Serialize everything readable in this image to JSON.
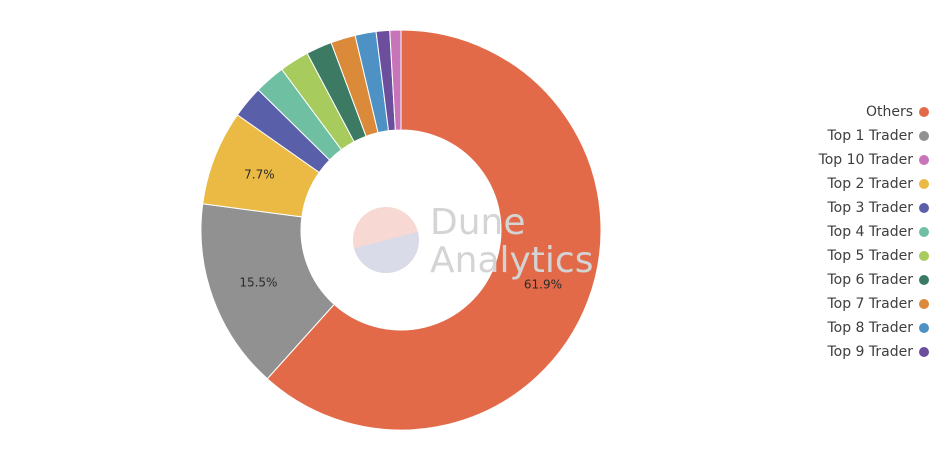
{
  "chart_data": {
    "type": "pie",
    "donut": true,
    "title": "",
    "watermark": [
      "Dune",
      "Analytics"
    ],
    "legend_position": "right",
    "slices": [
      {
        "label": "Others",
        "value": 61.9,
        "color": "#e36a48",
        "show_label": true,
        "data_label": "61.9%"
      },
      {
        "label": "Top 1 Trader",
        "value": 15.5,
        "color": "#919191",
        "show_label": true,
        "data_label": "15.5%"
      },
      {
        "label": "Top 2 Trader",
        "value": 7.7,
        "color": "#ebba45",
        "show_label": true,
        "data_label": "7.7%"
      },
      {
        "label": "Top 3 Trader",
        "value": 2.6,
        "color": "#5a5fa9",
        "show_label": false,
        "data_label": ""
      },
      {
        "label": "Top 4 Trader",
        "value": 2.5,
        "color": "#6fc0a3",
        "show_label": false,
        "data_label": ""
      },
      {
        "label": "Top 5 Trader",
        "value": 2.4,
        "color": "#a7cc5d",
        "show_label": false,
        "data_label": ""
      },
      {
        "label": "Top 6 Trader",
        "value": 2.1,
        "color": "#3c7a64",
        "show_label": false,
        "data_label": ""
      },
      {
        "label": "Top 7 Trader",
        "value": 2.0,
        "color": "#db8a3a",
        "show_label": false,
        "data_label": ""
      },
      {
        "label": "Top 8 Trader",
        "value": 1.7,
        "color": "#4d91c5",
        "show_label": false,
        "data_label": ""
      },
      {
        "label": "Top 9 Trader",
        "value": 1.1,
        "color": "#6b4f9c",
        "show_label": false,
        "data_label": ""
      },
      {
        "label": "Top 10 Trader",
        "value": 0.9,
        "color": "#c774b8",
        "show_label": false,
        "data_label": ""
      }
    ],
    "legend_order": [
      "Others",
      "Top 1 Trader",
      "Top 10 Trader",
      "Top 2 Trader",
      "Top 3 Trader",
      "Top 4 Trader",
      "Top 5 Trader",
      "Top 6 Trader",
      "Top 7 Trader",
      "Top 8 Trader",
      "Top 9 Trader"
    ]
  }
}
